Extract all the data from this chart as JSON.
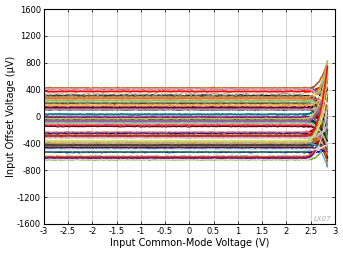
{
  "title": "",
  "xlabel": "Input Common-Mode Voltage (V)",
  "ylabel": "Input Offset Voltage (μV)",
  "xlim": [
    -3,
    3
  ],
  "ylim": [
    -1600,
    1600
  ],
  "xticks": [
    -3,
    -2.5,
    -2,
    -1.5,
    -1,
    -0.5,
    0,
    0.5,
    1,
    1.5,
    2,
    2.5,
    3
  ],
  "yticks": [
    -1600,
    -1200,
    -800,
    -400,
    0,
    400,
    800,
    1200,
    1600
  ],
  "watermark": "LX07",
  "background_color": "#ffffff",
  "grid_color": "#c0c0c0",
  "n_lines": 80,
  "flat_region_end": 2.35,
  "diverge_end": 2.85,
  "seed": 42
}
